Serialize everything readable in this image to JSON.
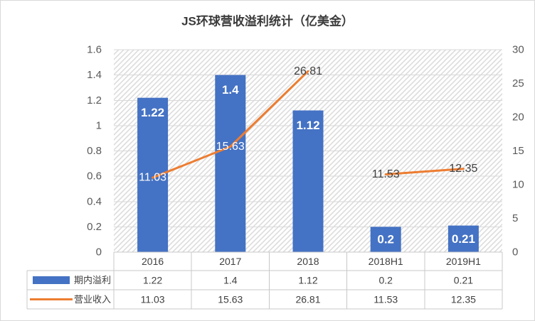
{
  "chart_data": {
    "type": "bar",
    "title": "JS环球营收溢利统计（亿美金）",
    "categories": [
      "2016",
      "2017",
      "2018",
      "2018H1",
      "2019H1"
    ],
    "series": [
      {
        "name": "期内溢利",
        "type": "bar",
        "values": [
          1.22,
          1.4,
          1.12,
          0.2,
          0.21
        ],
        "color": "#4472C4",
        "data_labels": true,
        "secondary_axis": false
      },
      {
        "name": "营业收入",
        "type": "line",
        "values": [
          11.03,
          15.63,
          26.81,
          11.53,
          12.35
        ],
        "color": "#ED7D31",
        "data_labels": true,
        "secondary_axis": true,
        "joined": [
          true,
          true,
          false,
          true
        ]
      }
    ],
    "ylim": [
      0,
      1.6
    ],
    "y_ticks": [
      0,
      0.2,
      0.4,
      0.6,
      0.8,
      1,
      1.2,
      1.4,
      1.6
    ],
    "y2lim": [
      0,
      30
    ],
    "y2_ticks": [
      0,
      5,
      10,
      15,
      20,
      25,
      30
    ],
    "grid": true,
    "legend": "bottom",
    "data_table": true
  }
}
